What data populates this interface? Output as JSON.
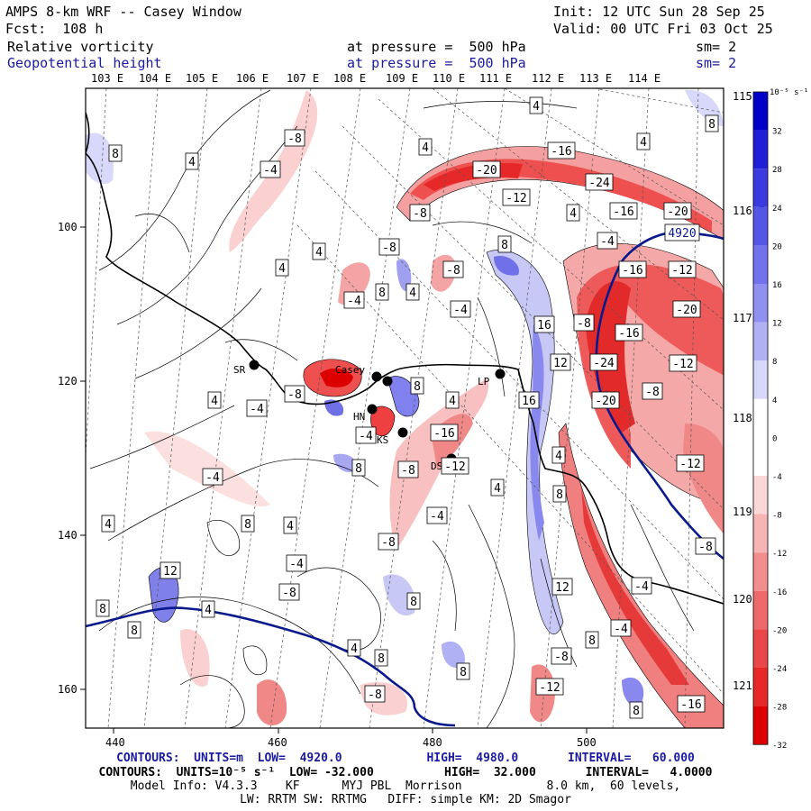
{
  "header": {
    "title": "AMPS 8-km WRF -- Casey Window",
    "init": "Init: 12 UTC Sun 28 Sep 25",
    "forecast": "Fcst:  108 h",
    "valid": "Valid: 00 UTC Fri 03 Oct 25",
    "field1_name": "Relative vorticity",
    "field1_level": "at pressure =  500 hPa",
    "field1_sm": "sm= 2",
    "field2_name": "Geopotential height",
    "field2_level": "at pressure =  500 hPa",
    "field2_sm": "sm= 2"
  },
  "map": {
    "colors": {
      "positive": "#2222dd",
      "negative": "#ee2222",
      "height_contour": "#1a1aa0",
      "coast": "#000000"
    },
    "lon_labels_top": [
      "103 E",
      "104 E",
      "105 E",
      "106 E",
      "107 E",
      "108 E",
      "109 E",
      "110 E",
      "111 E",
      "112 E",
      "113 E",
      "114 E"
    ],
    "lon_labels_right": [
      "115 E",
      "116 E",
      "117 E",
      "118 E",
      "119 E",
      "120 E",
      "121 E"
    ],
    "x_ticks": [
      "440",
      "460",
      "480",
      "500"
    ],
    "y_ticks": [
      "100",
      "120",
      "140",
      "160"
    ],
    "stations": [
      "SR",
      "Casey",
      "HN",
      "KS",
      "DS",
      "LP"
    ],
    "height_contour_label": "4920",
    "contour_labels": [
      {
        "t": "8",
        "x": 128,
        "y": 170
      },
      {
        "t": "4",
        "x": 213,
        "y": 179
      },
      {
        "t": "-8",
        "x": 327,
        "y": 153
      },
      {
        "t": "-4",
        "x": 300,
        "y": 188
      },
      {
        "t": "4",
        "x": 472,
        "y": 163
      },
      {
        "t": "4",
        "x": 595,
        "y": 117
      },
      {
        "t": "8",
        "x": 790,
        "y": 137
      },
      {
        "t": "4",
        "x": 714,
        "y": 157
      },
      {
        "t": "-16",
        "x": 623,
        "y": 167
      },
      {
        "t": "-20",
        "x": 540,
        "y": 188
      },
      {
        "t": "-24",
        "x": 665,
        "y": 202
      },
      {
        "t": "-12",
        "x": 573,
        "y": 219
      },
      {
        "t": "-8",
        "x": 466,
        "y": 236
      },
      {
        "t": "4",
        "x": 636,
        "y": 236
      },
      {
        "t": "-16",
        "x": 692,
        "y": 234
      },
      {
        "t": "-20",
        "x": 752,
        "y": 234
      },
      {
        "t": "4920",
        "x": 757,
        "y": 258
      },
      {
        "t": "-4",
        "x": 674,
        "y": 267
      },
      {
        "t": "8",
        "x": 560,
        "y": 271
      },
      {
        "t": "-8",
        "x": 432,
        "y": 274
      },
      {
        "t": "4",
        "x": 354,
        "y": 279
      },
      {
        "t": "-8",
        "x": 503,
        "y": 299
      },
      {
        "t": "4",
        "x": 313,
        "y": 297
      },
      {
        "t": "-16",
        "x": 702,
        "y": 299
      },
      {
        "t": "-12",
        "x": 757,
        "y": 299
      },
      {
        "t": "-4",
        "x": 393,
        "y": 333
      },
      {
        "t": "8",
        "x": 424,
        "y": 324
      },
      {
        "t": "4",
        "x": 458,
        "y": 324
      },
      {
        "t": "-4",
        "x": 511,
        "y": 343
      },
      {
        "t": "-20",
        "x": 762,
        "y": 343
      },
      {
        "t": "16",
        "x": 604,
        "y": 360
      },
      {
        "t": "-8",
        "x": 648,
        "y": 358
      },
      {
        "t": "-16",
        "x": 698,
        "y": 369
      },
      {
        "t": "12",
        "x": 622,
        "y": 402
      },
      {
        "t": "-24",
        "x": 670,
        "y": 402
      },
      {
        "t": "-12",
        "x": 758,
        "y": 403
      },
      {
        "t": "-8",
        "x": 327,
        "y": 437
      },
      {
        "t": "8",
        "x": 463,
        "y": 428
      },
      {
        "t": "-8",
        "x": 724,
        "y": 434
      },
      {
        "t": "4",
        "x": 238,
        "y": 444
      },
      {
        "t": "-4",
        "x": 285,
        "y": 453
      },
      {
        "t": "16",
        "x": 587,
        "y": 444
      },
      {
        "t": "-20",
        "x": 672,
        "y": 444
      },
      {
        "t": "4",
        "x": 502,
        "y": 444
      },
      {
        "t": "-16",
        "x": 493,
        "y": 480
      },
      {
        "t": "-4",
        "x": 406,
        "y": 483
      },
      {
        "t": "4",
        "x": 620,
        "y": 505
      },
      {
        "t": "-12",
        "x": 766,
        "y": 514
      },
      {
        "t": "-4",
        "x": 236,
        "y": 529
      },
      {
        "t": "8",
        "x": 398,
        "y": 519
      },
      {
        "t": "-8",
        "x": 453,
        "y": 521
      },
      {
        "t": "-12",
        "x": 505,
        "y": 517
      },
      {
        "t": "4",
        "x": 552,
        "y": 541
      },
      {
        "t": "8",
        "x": 621,
        "y": 548
      },
      {
        "t": "-4",
        "x": 485,
        "y": 572
      },
      {
        "t": "4",
        "x": 120,
        "y": 581
      },
      {
        "t": "8",
        "x": 275,
        "y": 581
      },
      {
        "t": "4",
        "x": 322,
        "y": 583
      },
      {
        "t": "-8",
        "x": 431,
        "y": 601
      },
      {
        "t": "-8",
        "x": 783,
        "y": 606
      },
      {
        "t": "-4",
        "x": 329,
        "y": 625
      },
      {
        "t": "12",
        "x": 189,
        "y": 633
      },
      {
        "t": "-8",
        "x": 321,
        "y": 657
      },
      {
        "t": "12",
        "x": 624,
        "y": 651
      },
      {
        "t": "-4",
        "x": 712,
        "y": 650
      },
      {
        "t": "8",
        "x": 114,
        "y": 675
      },
      {
        "t": "8",
        "x": 459,
        "y": 667
      },
      {
        "t": "4",
        "x": 231,
        "y": 676
      },
      {
        "t": "8",
        "x": 149,
        "y": 699
      },
      {
        "t": "-4",
        "x": 689,
        "y": 697
      },
      {
        "t": "8",
        "x": 657,
        "y": 710
      },
      {
        "t": "4",
        "x": 393,
        "y": 719
      },
      {
        "t": "8",
        "x": 423,
        "y": 730
      },
      {
        "t": "-8",
        "x": 623,
        "y": 728
      },
      {
        "t": "8",
        "x": 514,
        "y": 745
      },
      {
        "t": "-12",
        "x": 610,
        "y": 762
      },
      {
        "t": "-8",
        "x": 416,
        "y": 770
      },
      {
        "t": "8",
        "x": 706,
        "y": 788
      },
      {
        "t": "-16",
        "x": 767,
        "y": 781
      }
    ]
  },
  "colorbar": {
    "units": "10⁻⁵ s⁻¹",
    "labels": [
      "32",
      "28",
      "24",
      "20",
      "16",
      "12",
      "8",
      "4",
      "0",
      "-4",
      "-8",
      "-12",
      "-16",
      "-20",
      "-24",
      "-28",
      "-32"
    ],
    "colors": [
      "#0000c8",
      "#1f1fd8",
      "#3a3ae0",
      "#5555e6",
      "#7272ec",
      "#9090f0",
      "#b0b0f4",
      "#d8d8fa",
      "#ffffff",
      "#ffffff",
      "#fad8d8",
      "#f6b4b4",
      "#f28e8e",
      "#ee6a6a",
      "#ea4848",
      "#e62828",
      "#dd0000"
    ]
  },
  "footer": {
    "line1": "CONTOURS:  UNITS=m  LOW=  4920.0            HIGH=  4980.0       INTERVAL=   60.000",
    "line2": "CONTOURS:  UNITS=10⁻⁵ s⁻¹  LOW= -32.000          HIGH=  32.000       INTERVAL=   4.0000",
    "line3": "Model Info: V4.3.3    KF      MYJ PBL  Morrison            8.0 km,  60 levels,",
    "line4": "LW: RRTM SW: RRTMG   DIFF: simple KM: 2D Smagor"
  }
}
